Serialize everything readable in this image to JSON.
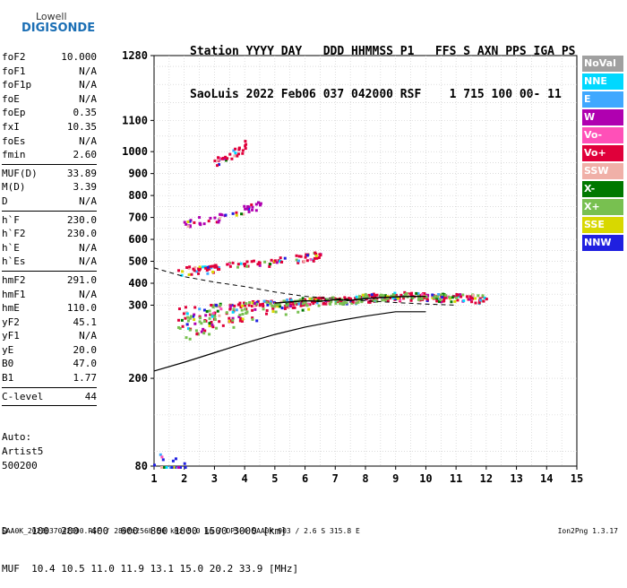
{
  "logo": {
    "line1": "Lowell",
    "line2": "DIGISONDE"
  },
  "header": {
    "line1": "Station YYYY DAY   DDD HHMMSS P1   FFS S AXN PPS IGA PS",
    "line2": "SaoLuis 2022 Feb06 037 042000 RSF    1 715 100 00- 11"
  },
  "params": [
    {
      "name": "foF2",
      "value": "10.000"
    },
    {
      "name": "foF1",
      "value": "N/A"
    },
    {
      "name": "foF1p",
      "value": "N/A"
    },
    {
      "name": "foE",
      "value": "N/A"
    },
    {
      "name": "foEp",
      "value": "0.35"
    },
    {
      "name": "fxI",
      "value": "10.35"
    },
    {
      "name": "foEs",
      "value": "N/A"
    },
    {
      "name": "fmin",
      "value": "2.60"
    },
    {
      "sep": true
    },
    {
      "name": "MUF(D)",
      "value": "33.89"
    },
    {
      "name": "M(D)",
      "value": "3.39"
    },
    {
      "name": "D",
      "value": "N/A"
    },
    {
      "sep": true
    },
    {
      "name": "h`F",
      "value": "230.0"
    },
    {
      "name": "h`F2",
      "value": "230.0"
    },
    {
      "name": "h`E",
      "value": "N/A"
    },
    {
      "name": "h`Es",
      "value": "N/A"
    },
    {
      "sep": true
    },
    {
      "name": "hmF2",
      "value": "291.0"
    },
    {
      "name": "hmF1",
      "value": "N/A"
    },
    {
      "name": "hmE",
      "value": "110.0"
    },
    {
      "name": "yF2",
      "value": "45.1"
    },
    {
      "name": "yF1",
      "value": "N/A"
    },
    {
      "name": "yE",
      "value": "20.0"
    },
    {
      "name": "B0",
      "value": "47.0"
    },
    {
      "name": "B1",
      "value": "1.77"
    },
    {
      "sep": true
    },
    {
      "name": "C-level",
      "value": "44"
    },
    {
      "sep": true
    }
  ],
  "auto": {
    "line1": "Auto:",
    "line2": "Artist5",
    "line3": "500200"
  },
  "bottom": {
    "line1": "D    100  200  400  600  800 1000 1500 3000 [km]",
    "line2": "MUF  10.4 10.5 11.0 11.9 13.1 15.0 20.2 33.9 [MHz]"
  },
  "footer": {
    "text": "SAA0K_2022037042000.RSF / 280fx256h 50 kHz 5.0 km / DPS-4 SAA0K 903 / 2.6 S 315.8 E",
    "version": "Ion2Png 1.3.17"
  },
  "legend": [
    {
      "label": "NoVal",
      "color": "#a0a0a0"
    },
    {
      "label": "NNE",
      "color": "#00d8ff"
    },
    {
      "label": "E",
      "color": "#40a8ff"
    },
    {
      "label": "W",
      "color": "#b000b0"
    },
    {
      "label": "Vo-",
      "color": "#ff50b8"
    },
    {
      "label": "Vo+",
      "color": "#e0003a"
    },
    {
      "label": "SSW",
      "color": "#f0b0a8"
    },
    {
      "label": "X-",
      "color": "#007800"
    },
    {
      "label": "X+",
      "color": "#78c050"
    },
    {
      "label": "SSE",
      "color": "#d8d800"
    },
    {
      "label": "NNW",
      "color": "#2020e0"
    }
  ],
  "chart_data": {
    "type": "scatter",
    "xlim": [
      1,
      15
    ],
    "ylim": [
      80,
      1280
    ],
    "x_ticks": [
      "1",
      "2",
      "3",
      "4",
      "5",
      "6",
      "7",
      "8",
      "9",
      "10",
      "11",
      "12",
      "13",
      "14",
      "15"
    ],
    "y_ticks": [
      {
        "v": 80,
        "label": "80"
      },
      {
        "v": 200,
        "label": "200"
      },
      {
        "v": 300,
        "label": "300"
      },
      {
        "v": 400,
        "label": "400"
      },
      {
        "v": 500,
        "label": "500"
      },
      {
        "v": 600,
        "label": "600"
      },
      {
        "v": 700,
        "label": "700"
      },
      {
        "v": 800,
        "label": "800"
      },
      {
        "v": 900,
        "label": "900"
      },
      {
        "v": 1000,
        "label": "1000"
      },
      {
        "v": 1100,
        "label": "1100"
      },
      {
        "v": 1280,
        "label": "1280"
      }
    ],
    "y_scale_breaks": [
      {
        "v": 80,
        "frac": 0.0
      },
      {
        "v": 300,
        "frac": 0.392
      },
      {
        "v": 1000,
        "frac": 0.766
      },
      {
        "v": 1100,
        "frac": 0.842
      },
      {
        "v": 1280,
        "frac": 1.0
      }
    ],
    "grid": true,
    "traces": [
      {
        "name": "F2 O-trace",
        "x": [
          1.8,
          2.5,
          3.0,
          3.5,
          4.0,
          4.5,
          5.0,
          5.5,
          6.0,
          6.5,
          7.0,
          7.5,
          8.0,
          8.5,
          9.0,
          9.5,
          10.0,
          10.5,
          11.0,
          11.5,
          12.0
        ],
        "y": [
          280,
          285,
          290,
          295,
          300,
          305,
          310,
          315,
          320,
          325,
          330,
          330,
          335,
          340,
          345,
          345,
          345,
          340,
          340,
          335,
          330
        ],
        "color": "#e0003a"
      },
      {
        "name": "F2 X-trace",
        "x": [
          1.8,
          2.5,
          3.0,
          4.0,
          5.0,
          6.0,
          7.0,
          8.0,
          9.0,
          10.0,
          11.0
        ],
        "y": [
          270,
          278,
          285,
          295,
          305,
          315,
          325,
          335,
          340,
          340,
          335
        ],
        "color": "#78c050"
      },
      {
        "name": "2F multihop",
        "x": [
          1.8,
          2.5,
          3.0,
          4.0,
          5.0,
          6.0,
          6.5
        ],
        "y": [
          460,
          465,
          475,
          490,
          505,
          520,
          530
        ],
        "color": "#e0003a"
      },
      {
        "name": "3F multihop",
        "x": [
          2.0,
          3.0,
          4.0,
          4.5
        ],
        "y": [
          680,
          700,
          740,
          760
        ],
        "color": "#b000b0"
      },
      {
        "name": "4F multihop",
        "x": [
          3.0,
          3.5,
          4.0
        ],
        "y": [
          960,
          990,
          1020
        ],
        "color": "#e0003a"
      },
      {
        "name": "low echo",
        "x": [
          1.0,
          2.0
        ],
        "y": [
          82,
          84
        ],
        "color": "#2020e0"
      }
    ],
    "profile_solid": {
      "x": [
        1,
        2,
        3,
        4,
        5,
        6,
        7,
        8,
        9,
        10
      ],
      "y": [
        210,
        222,
        235,
        248,
        260,
        270,
        278,
        285,
        291,
        291
      ]
    },
    "profile_dashed": {
      "x": [
        1,
        2,
        3,
        4,
        5,
        6,
        7,
        8,
        9,
        10,
        11
      ],
      "y": [
        470,
        430,
        405,
        385,
        360,
        340,
        330,
        320,
        312,
        305,
        300
      ]
    },
    "profile_trace": {
      "x": [
        5,
        6,
        6.5,
        7,
        7.5,
        8,
        8.5,
        9,
        9.5,
        10
      ],
      "y": [
        310,
        320,
        318,
        325,
        322,
        330,
        335,
        338,
        340,
        340
      ]
    }
  }
}
